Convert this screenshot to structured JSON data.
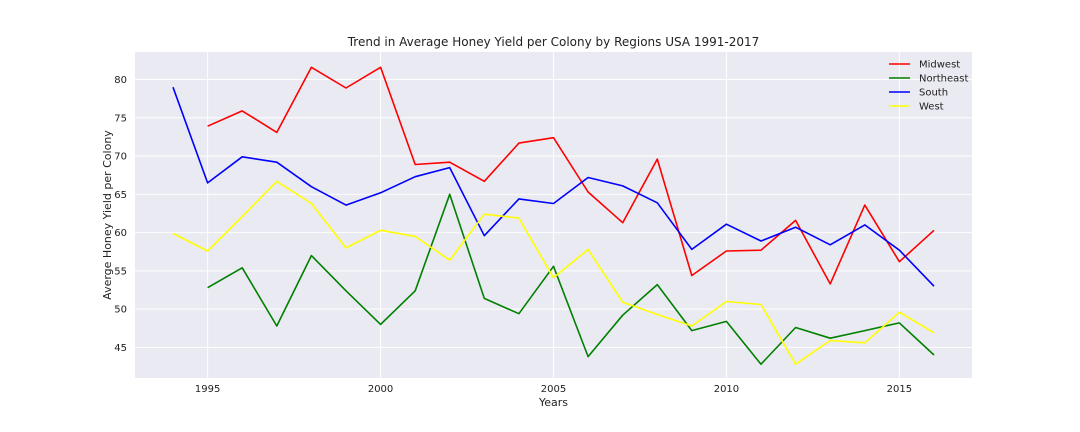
{
  "chart_data": {
    "type": "line",
    "title": "Trend in Average Honey Yield per Colony by Regions USA 1991-2017",
    "xlabel": "Years",
    "ylabel": "Averge Honey Yield per Colony",
    "xlim": [
      1992.9,
      2017.1
    ],
    "ylim": [
      41,
      83.6
    ],
    "x_ticks": [
      1995,
      2000,
      2005,
      2010,
      2015
    ],
    "y_ticks": [
      45,
      50,
      55,
      60,
      65,
      70,
      75,
      80
    ],
    "grid": true,
    "legend_position": "top-right",
    "series": [
      {
        "name": "Midwest",
        "color": "#ff0000",
        "x": [
          1995,
          1996,
          1997,
          1998,
          1999,
          2000,
          2001,
          2002,
          2003,
          2004,
          2005,
          2006,
          2007,
          2008,
          2009,
          2010,
          2011,
          2012,
          2013,
          2014,
          2015,
          2016
        ],
        "values": [
          73.9,
          75.9,
          73.1,
          81.6,
          78.9,
          81.6,
          68.9,
          69.2,
          66.7,
          71.7,
          72.4,
          65.3,
          61.3,
          69.6,
          54.4,
          57.6,
          57.7,
          61.6,
          53.3,
          63.6,
          56.2,
          60.3
        ]
      },
      {
        "name": "Northeast",
        "color": "#008000",
        "x": [
          1995,
          1996,
          1997,
          1998,
          1999,
          2000,
          2001,
          2002,
          2003,
          2004,
          2005,
          2006,
          2007,
          2008,
          2009,
          2010,
          2011,
          2012,
          2013,
          2014,
          2015,
          2016
        ],
        "values": [
          52.8,
          55.4,
          47.8,
          57.0,
          52.4,
          48.0,
          52.4,
          65.0,
          51.4,
          49.4,
          55.6,
          43.8,
          49.2,
          53.2,
          47.2,
          48.4,
          42.8,
          47.6,
          46.2,
          47.2,
          48.2,
          44.0
        ]
      },
      {
        "name": "South",
        "color": "#0000ff",
        "x": [
          1994,
          1995,
          1996,
          1997,
          1998,
          1999,
          2000,
          2001,
          2002,
          2003,
          2004,
          2005,
          2006,
          2007,
          2008,
          2009,
          2010,
          2011,
          2012,
          2013,
          2014,
          2015,
          2016
        ],
        "values": [
          79.0,
          66.5,
          69.9,
          69.2,
          66.0,
          63.6,
          65.2,
          67.3,
          68.5,
          59.6,
          64.4,
          63.8,
          67.2,
          66.1,
          63.9,
          57.8,
          61.1,
          58.9,
          60.7,
          58.4,
          61.0,
          57.7,
          53.0
        ]
      },
      {
        "name": "West",
        "color": "#ffff00",
        "x": [
          1994,
          1995,
          1996,
          1997,
          1998,
          1999,
          2000,
          2001,
          2002,
          2003,
          2004,
          2005,
          2006,
          2007,
          2008,
          2009,
          2010,
          2011,
          2012,
          2013,
          2014,
          2015,
          2016
        ],
        "values": [
          59.9,
          57.6,
          62.1,
          66.7,
          63.8,
          58.0,
          60.3,
          59.5,
          56.4,
          62.4,
          61.9,
          54.1,
          57.8,
          50.9,
          49.3,
          47.8,
          51.0,
          50.6,
          42.8,
          45.9,
          45.6,
          49.6,
          46.9
        ]
      }
    ]
  }
}
